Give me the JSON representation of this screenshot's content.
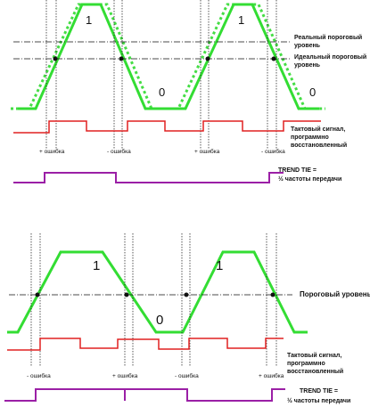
{
  "top": {
    "levels": [
      "1",
      "1",
      "0",
      "0"
    ],
    "real_threshold_label": [
      "Реальный пороговый",
      "уровень"
    ],
    "ideal_threshold_label": [
      "Идеальный пороговый",
      "уровень"
    ],
    "clock_label": [
      "Тактовый сигнал,",
      "программно",
      "восстановленный"
    ],
    "error_labels": [
      "+ ошибка",
      "- ошибка",
      "+ ошибка",
      "- ошибка"
    ],
    "tie_label": [
      "TREND TIE =",
      "½ частоты передачи"
    ]
  },
  "bottom": {
    "levels": [
      "1",
      "1",
      "0"
    ],
    "threshold_label": "Пороговый уровень",
    "clock_label": [
      "Тактовый сигнал,",
      "программно",
      "восстановленный"
    ],
    "error_labels": [
      "- ошибка",
      "+ ошибка",
      "- ошибка",
      "+ ошибка"
    ],
    "tie_label": [
      "TREND TIE =",
      "½ частоты передачи"
    ]
  }
}
